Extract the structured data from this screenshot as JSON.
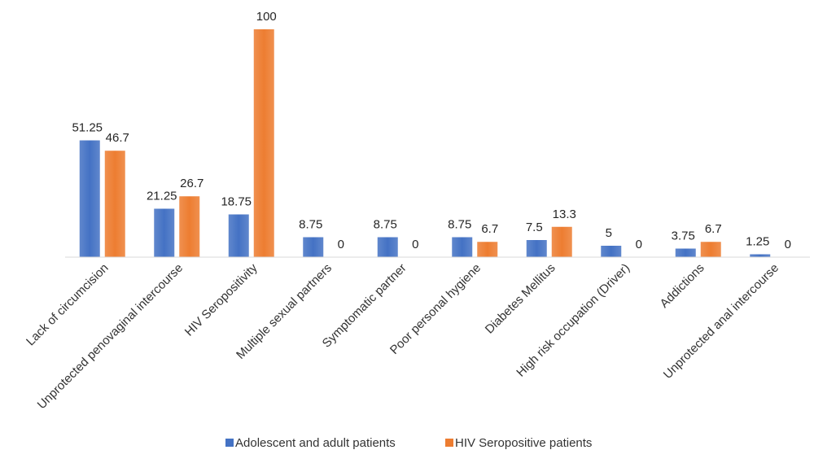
{
  "chart_data": {
    "type": "bar",
    "categories": [
      "Lack of circumcision",
      "Unprotected penovaginal intercourse",
      "HIV Seropositivity",
      "Multiple sexual partners",
      "Symptomatic partner",
      "Poor personal hygiene",
      "Diabetes Mellitus",
      "High risk occupation (Driver)",
      "Addictions",
      "Unprotected anal intercourse"
    ],
    "series": [
      {
        "name": "Adolescent and adult patients",
        "color": "#4472C4",
        "values": [
          51.25,
          21.25,
          18.75,
          8.75,
          8.75,
          8.75,
          7.5,
          5,
          3.75,
          1.25
        ],
        "labels": [
          "51.25",
          "21.25",
          "18.75",
          "8.75",
          "8.75",
          "8.75",
          "7.5",
          "5",
          "3.75",
          "1.25"
        ]
      },
      {
        "name": "HIV Seropositive patients",
        "color": "#ED7D31",
        "values": [
          46.7,
          26.7,
          100,
          0,
          0,
          6.7,
          13.3,
          0,
          6.7,
          0
        ],
        "labels": [
          "46.7",
          "26.7",
          "100",
          "0",
          "0",
          "6.7",
          "13.3",
          "0",
          "6.7",
          "0"
        ]
      }
    ],
    "title": "",
    "xlabel": "",
    "ylabel": "",
    "ylim": [
      0,
      100
    ],
    "grid": false,
    "legend_position": "bottom"
  }
}
